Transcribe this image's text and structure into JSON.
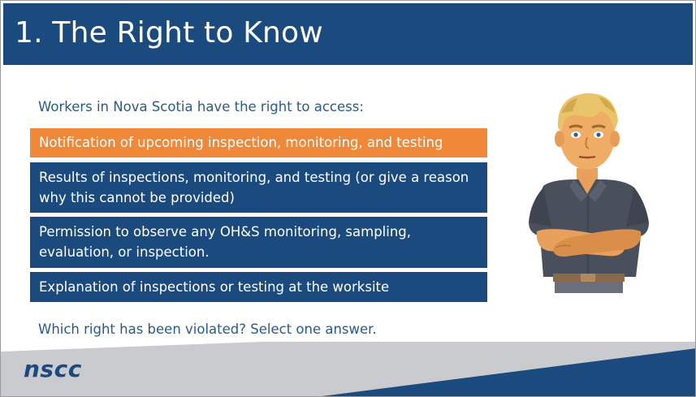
{
  "slide": {
    "title": "1. The Right to Know",
    "intro": "Workers in Nova Scotia have the right to access:",
    "question": "Which right has been violated? Select one answer."
  },
  "options": [
    {
      "label": "Notification of upcoming inspection, monitoring, and testing",
      "selected": true
    },
    {
      "label": "Results of inspections, monitoring, and testing (or give a reason why this cannot be provided)",
      "selected": false
    },
    {
      "label": "Permission to observe any OH&S monitoring, sampling, evaluation, or inspection.",
      "selected": false
    },
    {
      "label": "Explanation of inspections or testing at the worksite",
      "selected": false
    }
  ],
  "footer": {
    "logo": "nscc"
  },
  "colors": {
    "primary_blue": "#1b4a7f",
    "selected_orange": "#f0883a",
    "text_blue": "#2a5a8a",
    "footer_gray": "#c9cbce"
  },
  "character": {
    "description_icon": "worker-arms-crossed-illustration"
  }
}
